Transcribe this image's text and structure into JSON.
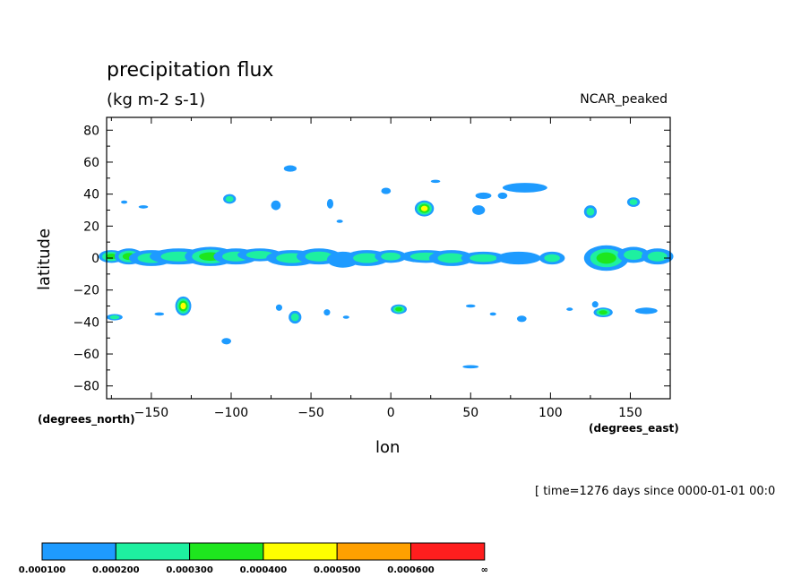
{
  "chart_data": {
    "type": "contour-map",
    "title": "precipitation flux",
    "units": "(kg m-2 s-1)",
    "model_label": "NCAR_peaked",
    "xlabel": "lon",
    "ylabel": "latitude",
    "x_units_note": "(degrees_east)",
    "y_units_note": "(degrees_north)",
    "time_label": "[ time=1276 days since 0000-01-01 00:0",
    "xlim": [
      -178,
      175
    ],
    "ylim": [
      -88,
      88
    ],
    "x_ticks": [
      -150,
      -100,
      -50,
      0,
      50,
      100,
      150
    ],
    "y_ticks": [
      80,
      60,
      40,
      20,
      0,
      -20,
      -40,
      -60,
      -80
    ],
    "levels": [
      0.0001,
      0.0002,
      0.0003,
      0.0004,
      0.0005,
      0.0006
    ],
    "colorbar": {
      "colors": [
        "#1e9bff",
        "#1ef0a0",
        "#1ee61e",
        "#ffff00",
        "#ffa000",
        "#ff1e1e"
      ],
      "labels": [
        "0.000100",
        "0.000200",
        "0.000300",
        "0.000400",
        "0.000500",
        "0.000600",
        "∞"
      ]
    },
    "precip_features": [
      {
        "lon": -175,
        "lat": 1,
        "w": 8,
        "h": 4,
        "peak": 3
      },
      {
        "lon": -164,
        "lat": 1,
        "w": 9,
        "h": 5,
        "peak": 3
      },
      {
        "lon": -150,
        "lat": 0,
        "w": 14,
        "h": 5,
        "peak": 2
      },
      {
        "lon": -133,
        "lat": 1,
        "w": 18,
        "h": 5,
        "peak": 2
      },
      {
        "lon": -113,
        "lat": 1,
        "w": 16,
        "h": 6,
        "peak": 3
      },
      {
        "lon": -97,
        "lat": 1,
        "w": 14,
        "h": 5,
        "peak": 2
      },
      {
        "lon": -82,
        "lat": 2,
        "w": 14,
        "h": 4,
        "peak": 2
      },
      {
        "lon": -62,
        "lat": 0,
        "w": 16,
        "h": 5,
        "peak": 2
      },
      {
        "lon": -45,
        "lat": 1,
        "w": 14,
        "h": 5,
        "peak": 2
      },
      {
        "lon": -30,
        "lat": -1,
        "w": 10,
        "h": 5,
        "peak": 1
      },
      {
        "lon": -15,
        "lat": 0,
        "w": 14,
        "h": 5,
        "peak": 2
      },
      {
        "lon": 0,
        "lat": 1,
        "w": 10,
        "h": 4,
        "peak": 2
      },
      {
        "lon": 22,
        "lat": 1,
        "w": 16,
        "h": 4,
        "peak": 2
      },
      {
        "lon": 38,
        "lat": 0,
        "w": 14,
        "h": 5,
        "peak": 2
      },
      {
        "lon": 58,
        "lat": 0,
        "w": 14,
        "h": 4,
        "peak": 2
      },
      {
        "lon": 80,
        "lat": 0,
        "w": 14,
        "h": 4,
        "peak": 1
      },
      {
        "lon": 101,
        "lat": 0,
        "w": 8,
        "h": 4,
        "peak": 2
      },
      {
        "lon": 135,
        "lat": 0,
        "w": 14,
        "h": 8,
        "peak": 3
      },
      {
        "lon": 152,
        "lat": 2,
        "w": 10,
        "h": 5,
        "peak": 2
      },
      {
        "lon": 167,
        "lat": 1,
        "w": 10,
        "h": 5,
        "peak": 2
      },
      {
        "lon": -63,
        "lat": 56,
        "w": 4,
        "h": 2,
        "peak": 1
      },
      {
        "lon": -101,
        "lat": 37,
        "w": 4,
        "h": 3,
        "peak": 2
      },
      {
        "lon": -167,
        "lat": 35,
        "w": 2,
        "h": 1,
        "peak": 1
      },
      {
        "lon": -155,
        "lat": 32,
        "w": 3,
        "h": 1,
        "peak": 1
      },
      {
        "lon": -72,
        "lat": 33,
        "w": 3,
        "h": 3,
        "peak": 1
      },
      {
        "lon": -38,
        "lat": 34,
        "w": 2,
        "h": 3,
        "peak": 1
      },
      {
        "lon": -3,
        "lat": 42,
        "w": 3,
        "h": 2,
        "peak": 1
      },
      {
        "lon": 21,
        "lat": 31,
        "w": 6,
        "h": 5,
        "peak": 4
      },
      {
        "lon": 58,
        "lat": 39,
        "w": 5,
        "h": 2,
        "peak": 1
      },
      {
        "lon": 55,
        "lat": 30,
        "w": 4,
        "h": 3,
        "peak": 1
      },
      {
        "lon": 84,
        "lat": 44,
        "w": 14,
        "h": 3,
        "peak": 1
      },
      {
        "lon": 70,
        "lat": 39,
        "w": 3,
        "h": 2,
        "peak": 1
      },
      {
        "lon": 125,
        "lat": 29,
        "w": 4,
        "h": 4,
        "peak": 2
      },
      {
        "lon": 152,
        "lat": 35,
        "w": 4,
        "h": 3,
        "peak": 2
      },
      {
        "lon": 28,
        "lat": 48,
        "w": 3,
        "h": 1,
        "peak": 1
      },
      {
        "lon": -32,
        "lat": 23,
        "w": 2,
        "h": 1,
        "peak": 1
      },
      {
        "lon": -130,
        "lat": -30,
        "w": 5,
        "h": 6,
        "peak": 4
      },
      {
        "lon": -173,
        "lat": -37,
        "w": 5,
        "h": 2,
        "peak": 2
      },
      {
        "lon": -145,
        "lat": -35,
        "w": 3,
        "h": 1,
        "peak": 1
      },
      {
        "lon": -103,
        "lat": -52,
        "w": 3,
        "h": 2,
        "peak": 1
      },
      {
        "lon": -70,
        "lat": -31,
        "w": 2,
        "h": 2,
        "peak": 1
      },
      {
        "lon": -60,
        "lat": -37,
        "w": 4,
        "h": 4,
        "peak": 2
      },
      {
        "lon": -40,
        "lat": -34,
        "w": 2,
        "h": 2,
        "peak": 1
      },
      {
        "lon": -28,
        "lat": -37,
        "w": 2,
        "h": 1,
        "peak": 1
      },
      {
        "lon": 5,
        "lat": -32,
        "w": 5,
        "h": 3,
        "peak": 3
      },
      {
        "lon": 50,
        "lat": -30,
        "w": 3,
        "h": 1,
        "peak": 1
      },
      {
        "lon": 64,
        "lat": -35,
        "w": 2,
        "h": 1,
        "peak": 1
      },
      {
        "lon": 82,
        "lat": -38,
        "w": 3,
        "h": 2,
        "peak": 1
      },
      {
        "lon": 133,
        "lat": -34,
        "w": 6,
        "h": 3,
        "peak": 3
      },
      {
        "lon": 128,
        "lat": -29,
        "w": 2,
        "h": 2,
        "peak": 1
      },
      {
        "lon": 160,
        "lat": -33,
        "w": 7,
        "h": 2,
        "peak": 1
      },
      {
        "lon": 50,
        "lat": -68,
        "w": 5,
        "h": 1,
        "peak": 1
      },
      {
        "lon": 112,
        "lat": -32,
        "w": 2,
        "h": 1,
        "peak": 1
      }
    ]
  }
}
